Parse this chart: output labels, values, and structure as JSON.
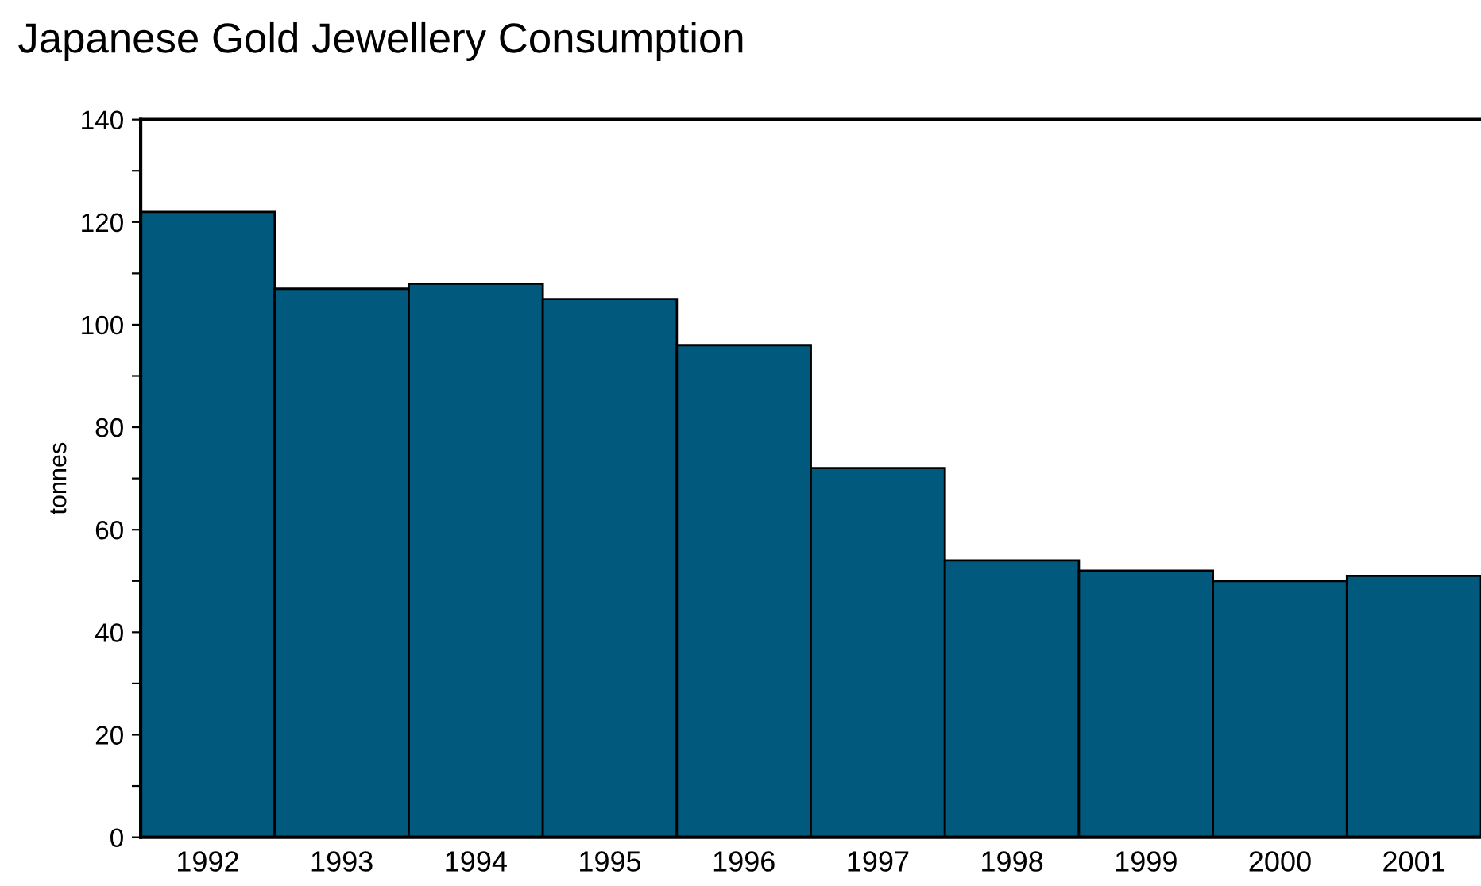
{
  "chart_data": {
    "type": "bar",
    "title": "Japanese Gold Jewellery Consumption",
    "ylabel": "tonnes",
    "categories": [
      "1992",
      "1993",
      "1994",
      "1995",
      "1996",
      "1997",
      "1998",
      "1999",
      "2000",
      "2001"
    ],
    "values": [
      122,
      107,
      108,
      105,
      96,
      72,
      54,
      52,
      50,
      51
    ],
    "color": "#015a7d",
    "ylim": [
      0,
      140
    ],
    "yticks": [
      0,
      {
        "value": 10,
        "label": null
      },
      20,
      {
        "value": 30,
        "label": null
      },
      40,
      {
        "value": 50,
        "label": null
      },
      60,
      {
        "value": 70,
        "label": null
      },
      80,
      {
        "value": 90,
        "label": null
      },
      100,
      {
        "value": 110,
        "label": null
      },
      120,
      {
        "value": 130,
        "label": null
      },
      140
    ],
    "grid": false,
    "legend": false
  }
}
